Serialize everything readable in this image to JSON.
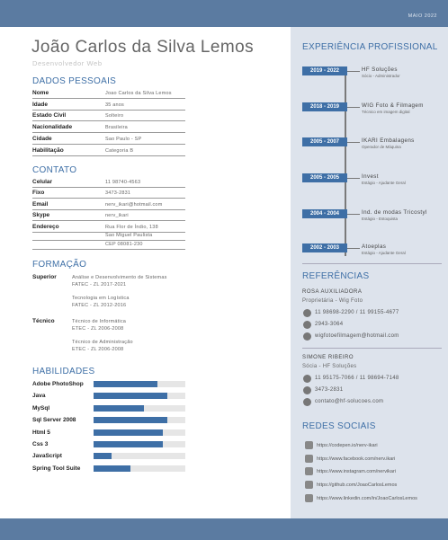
{
  "header": {
    "date": "MAIO 2022",
    "name": "João Carlos da Silva Lemos",
    "role": "Desenvolvedor Web"
  },
  "personal": {
    "title": "DADOS PESSOAIS",
    "rows": [
      {
        "label": "Nome",
        "lines": [
          "Joao Carlos da Silva Lemos"
        ]
      },
      {
        "label": "Idade",
        "lines": [
          "35 anos"
        ]
      },
      {
        "label": "Estado Civil",
        "lines": [
          "Solteiro"
        ]
      },
      {
        "label": "Nacionalidade",
        "lines": [
          "Brasileira"
        ]
      },
      {
        "label": "Cidade",
        "lines": [
          "Sao Paulo - SP"
        ]
      },
      {
        "label": "Habilitação",
        "lines": [
          "Categoria B"
        ]
      }
    ]
  },
  "contact": {
    "title": "CONTATO",
    "rows": [
      {
        "label": "Celular",
        "lines": [
          "11 98740-4563"
        ]
      },
      {
        "label": "Fixo",
        "lines": [
          "3473-2831"
        ]
      },
      {
        "label": "Email",
        "lines": [
          "nerv_ikari@hotmail.com"
        ]
      },
      {
        "label": "Skype",
        "lines": [
          "nerv_ikari"
        ]
      },
      {
        "label": "Endereço",
        "lines": [
          "Rua Flor de Índio, 138",
          "Sao Miguel Paulista",
          "CEP 08081-230"
        ]
      }
    ]
  },
  "education": {
    "title": "FORMAÇÃO",
    "groups": [
      {
        "level": "Superior",
        "courses": [
          {
            "name": "Análise e Desenvolvimento de Sistemas",
            "school": "FATEC - ZL 2017-2021"
          },
          {
            "name": "Tecnologia em Logística",
            "school": "FATEC - ZL 2012-2016"
          }
        ]
      },
      {
        "level": "Técnico",
        "courses": [
          {
            "name": "Técnico de Informática",
            "school": "ETEC - ZL 2006-2008"
          },
          {
            "name": "Técnico de Administração",
            "school": "ETEC - ZL 2006-2008"
          }
        ]
      }
    ]
  },
  "skills": {
    "title": "HABILIDADES",
    "items": [
      {
        "name": "Adobe PhotoShop",
        "level": 70
      },
      {
        "name": "Java",
        "level": 80
      },
      {
        "name": "MySql",
        "level": 55
      },
      {
        "name": "Sql Server 2008",
        "level": 80
      },
      {
        "name": "Html 5",
        "level": 75
      },
      {
        "name": "Css 3",
        "level": 75
      },
      {
        "name": "JavaScript",
        "level": 20
      },
      {
        "name": "Spring Tool Suite",
        "level": 40
      }
    ]
  },
  "experience": {
    "title": "EXPERIÊNCIA PROFISSIONAL",
    "items": [
      {
        "period": "2019 - 2022",
        "company": "HF Soluções",
        "role": "Sócio - Administrador"
      },
      {
        "period": "2018 - 2019",
        "company": "WIG Foto & Filmagem",
        "role": "Técnico em imagem digital"
      },
      {
        "period": "2005 - 2007",
        "company": "IKARI Embalagens",
        "role": "Operador de Máquina"
      },
      {
        "period": "2005 - 2005",
        "company": "Invest",
        "role": "Estágio - Ajudante Geral"
      },
      {
        "period": "2004 - 2004",
        "company": "Ind. de modas Tricostyl",
        "role": "Estágio - Estoquista"
      },
      {
        "period": "2002 - 2003",
        "company": "Atoeplas",
        "role": "Estágio - Ajudante Geral"
      }
    ]
  },
  "references": {
    "title": "REFERÊNCIAS",
    "items": [
      {
        "name": "ROSA AUXILIADORA",
        "role": "Proprietária - Wig Foto",
        "phone": "11 98698-2290 / 11 99155-4677",
        "landline": "2943-3064",
        "email": "wigfotoefilmagem@hotmail.com"
      },
      {
        "name": "SIMONE RIBEIRO",
        "role": "Sócia - HF Soluções",
        "phone": "11 95175-7066 / 11 98694-7148",
        "landline": "3473-2831",
        "email": "contato@hf-solucoes.com"
      }
    ]
  },
  "social": {
    "title": "REDES SOCIAIS",
    "links": [
      "https://codepen.io/nerv-ikari",
      "https://www.facebook.com/nerv.ikari",
      "https://www.instagram.com/nervikari",
      "https://github.com/JoaoCarlosLemos",
      "https://www.linkedin.com/in/JoaoCarlosLemos"
    ]
  }
}
